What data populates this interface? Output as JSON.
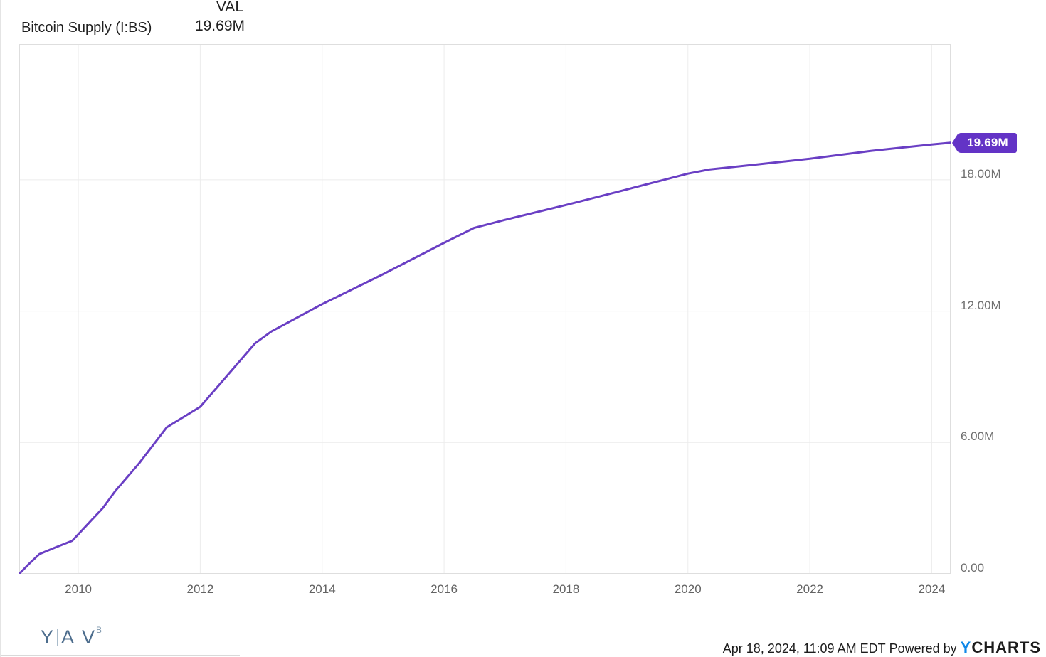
{
  "header": {
    "series_label": "Bitcoin Supply (I:BS)",
    "value_column_header": "VAL",
    "current_value": "19.69M"
  },
  "chart_data": {
    "type": "line",
    "title": "Bitcoin Supply (I:BS)",
    "unit_suffix": "M",
    "xlim": [
      2009.03,
      2024.31
    ],
    "ylim": [
      0,
      24.2
    ],
    "grid": true,
    "legend_position": "none",
    "x_ticks": [
      {
        "value": 2010,
        "label": "2010"
      },
      {
        "value": 2012,
        "label": "2012"
      },
      {
        "value": 2014,
        "label": "2014"
      },
      {
        "value": 2016,
        "label": "2016"
      },
      {
        "value": 2018,
        "label": "2018"
      },
      {
        "value": 2020,
        "label": "2020"
      },
      {
        "value": 2022,
        "label": "2022"
      },
      {
        "value": 2024,
        "label": "2024"
      }
    ],
    "y_ticks": [
      {
        "value": 18,
        "label": "18.00M"
      },
      {
        "value": 12,
        "label": "12.00M"
      },
      {
        "value": 6,
        "label": "6.00M"
      },
      {
        "value": 0,
        "label": "0.00"
      }
    ],
    "series": [
      {
        "name": "Bitcoin Supply (I:BS)",
        "color": "#6A3FC4",
        "points_unit": "millions of BTC",
        "points": [
          [
            2009.03,
            0.0
          ],
          [
            2009.2,
            0.48
          ],
          [
            2009.36,
            0.9
          ],
          [
            2009.61,
            1.19
          ],
          [
            2009.9,
            1.51
          ],
          [
            2010.4,
            3.0
          ],
          [
            2010.6,
            3.76
          ],
          [
            2011.0,
            5.06
          ],
          [
            2011.45,
            6.69
          ],
          [
            2012.0,
            7.63
          ],
          [
            2012.9,
            10.53
          ],
          [
            2013.17,
            11.08
          ],
          [
            2014.0,
            12.32
          ],
          [
            2015.0,
            13.69
          ],
          [
            2016.0,
            15.12
          ],
          [
            2016.49,
            15.8
          ],
          [
            2017.0,
            16.17
          ],
          [
            2018.0,
            16.85
          ],
          [
            2019.0,
            17.56
          ],
          [
            2020.0,
            18.28
          ],
          [
            2020.35,
            18.47
          ],
          [
            2021.03,
            18.67
          ],
          [
            2022.0,
            18.96
          ],
          [
            2023.0,
            19.32
          ],
          [
            2024.0,
            19.61
          ],
          [
            2024.31,
            19.69
          ]
        ]
      }
    ],
    "last_point": [
      2024.31,
      19.69
    ],
    "last_value_label": "19.69M"
  },
  "footer": {
    "logo_letters": [
      "Y",
      "A",
      "V"
    ],
    "logo_superscript": "B",
    "timestamp": "Apr 18, 2024, 11:09 AM EDT",
    "powered_by_label": "Powered by",
    "brand": {
      "prefix": "Y",
      "rest": "CHARTS"
    }
  },
  "colors": {
    "line": "#6A3FC4",
    "badge_background": "#6333C6",
    "brand_blue": "#1088E8",
    "gridline": "#ececec",
    "plot_border": "#dedede"
  }
}
